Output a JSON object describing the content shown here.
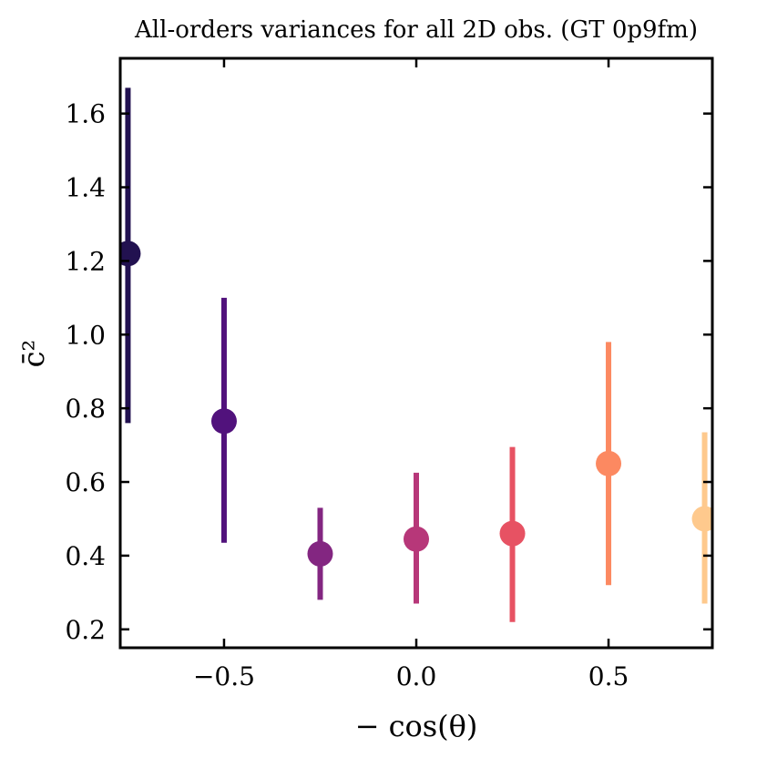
{
  "chart_data": {
    "type": "scatter",
    "title": "All-orders variances for all 2D obs. (GT 0p9fm)",
    "xlabel": "− cos(θ)",
    "ylabel": "c̄²",
    "xlim": [
      -0.77,
      0.77
    ],
    "ylim": [
      0.15,
      1.75
    ],
    "xticks": [
      -0.5,
      0.0,
      0.5
    ],
    "xtick_labels": [
      "−0.5",
      "0.0",
      "0.5"
    ],
    "yticks": [
      0.2,
      0.4,
      0.6,
      0.8,
      1.0,
      1.2,
      1.4,
      1.6
    ],
    "ytick_labels": [
      "0.2",
      "0.4",
      "0.6",
      "0.8",
      "1.0",
      "1.2",
      "1.4",
      "1.6"
    ],
    "grid": false,
    "legend": "none",
    "points": [
      {
        "x": -0.75,
        "y": 1.22,
        "ylow": 0.76,
        "yhigh": 1.67,
        "color": "#221150"
      },
      {
        "x": -0.5,
        "y": 0.765,
        "ylow": 0.435,
        "yhigh": 1.1,
        "color": "#51127c"
      },
      {
        "x": -0.25,
        "y": 0.405,
        "ylow": 0.28,
        "yhigh": 0.53,
        "color": "#832681"
      },
      {
        "x": 0.0,
        "y": 0.445,
        "ylow": 0.27,
        "yhigh": 0.625,
        "color": "#b73779"
      },
      {
        "x": 0.25,
        "y": 0.46,
        "ylow": 0.22,
        "yhigh": 0.695,
        "color": "#e75263"
      },
      {
        "x": 0.5,
        "y": 0.65,
        "ylow": 0.32,
        "yhigh": 0.98,
        "color": "#fc8961"
      },
      {
        "x": 0.75,
        "y": 0.5,
        "ylow": 0.27,
        "yhigh": 0.735,
        "color": "#fec98d"
      }
    ]
  }
}
